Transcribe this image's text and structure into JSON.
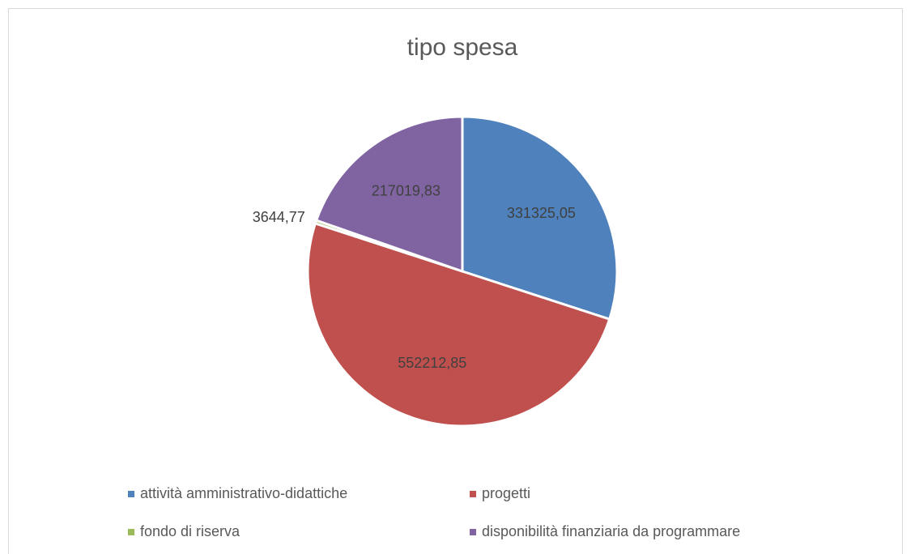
{
  "chart_data": {
    "type": "pie",
    "title": "tipo spesa",
    "categories": [
      "attività amministrativo-didattiche",
      "progetti",
      "fondo di riserva",
      "disponibilità finanziaria da programmare"
    ],
    "values": [
      331325.05,
      552212.85,
      3644.77,
      217019.83
    ],
    "value_labels": [
      "331325,05",
      "552212,85",
      "3644,77",
      "217019,83"
    ],
    "colors": [
      "#4f81bd",
      "#c0504d",
      "#9bbb59",
      "#8064a2"
    ],
    "legend": "bottom"
  }
}
